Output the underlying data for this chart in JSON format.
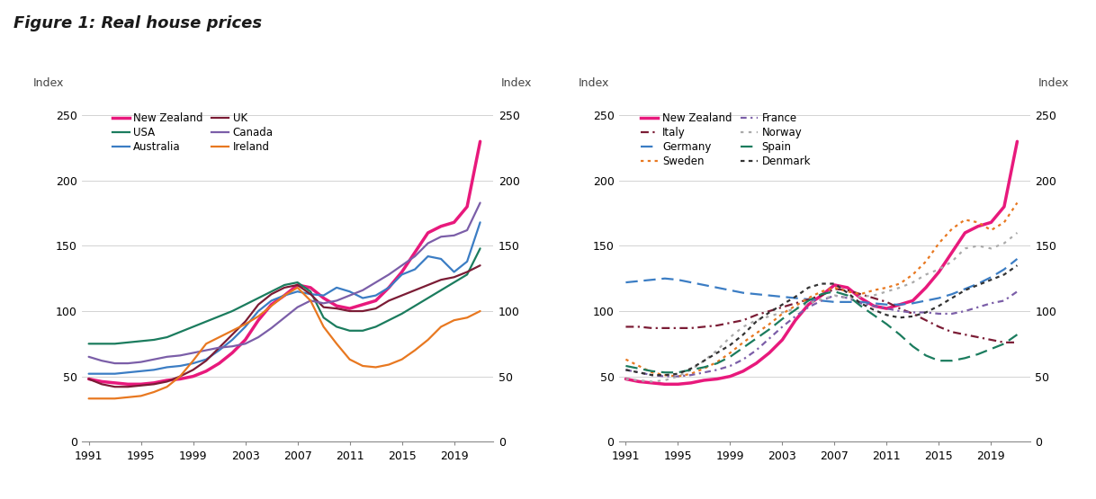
{
  "title": "Figure 1: Real house prices",
  "years": [
    1991,
    1992,
    1993,
    1994,
    1995,
    1996,
    1997,
    1998,
    1999,
    2000,
    2001,
    2002,
    2003,
    2004,
    2005,
    2006,
    2007,
    2008,
    2009,
    2010,
    2011,
    2012,
    2013,
    2014,
    2015,
    2016,
    2017,
    2018,
    2019,
    2020,
    2021
  ],
  "left_chart": {
    "New Zealand": [
      48,
      46,
      45,
      44,
      44,
      45,
      47,
      48,
      50,
      54,
      60,
      68,
      78,
      93,
      105,
      112,
      120,
      118,
      110,
      104,
      102,
      105,
      108,
      118,
      130,
      145,
      160,
      165,
      168,
      180,
      230
    ],
    "USA": [
      75,
      75,
      75,
      76,
      77,
      78,
      80,
      84,
      88,
      92,
      96,
      100,
      105,
      110,
      115,
      120,
      122,
      115,
      95,
      88,
      85,
      85,
      88,
      93,
      98,
      104,
      110,
      116,
      122,
      128,
      148
    ],
    "Australia": [
      52,
      52,
      52,
      53,
      54,
      55,
      57,
      58,
      60,
      63,
      70,
      78,
      88,
      100,
      108,
      112,
      115,
      113,
      112,
      118,
      115,
      110,
      112,
      118,
      128,
      132,
      142,
      140,
      130,
      138,
      168
    ],
    "UK": [
      48,
      44,
      42,
      42,
      43,
      44,
      46,
      50,
      55,
      62,
      72,
      82,
      92,
      105,
      113,
      118,
      120,
      113,
      103,
      102,
      100,
      100,
      102,
      108,
      112,
      116,
      120,
      124,
      126,
      130,
      135
    ],
    "Canada": [
      65,
      62,
      60,
      60,
      61,
      63,
      65,
      66,
      68,
      70,
      72,
      73,
      75,
      80,
      87,
      95,
      103,
      108,
      106,
      108,
      112,
      116,
      122,
      128,
      135,
      142,
      152,
      157,
      158,
      162,
      183
    ],
    "Ireland": [
      33,
      33,
      33,
      34,
      35,
      38,
      42,
      50,
      62,
      75,
      80,
      85,
      90,
      96,
      104,
      112,
      118,
      108,
      88,
      75,
      63,
      58,
      57,
      59,
      63,
      70,
      78,
      88,
      93,
      95,
      100
    ]
  },
  "right_chart": {
    "New Zealand": [
      48,
      46,
      45,
      44,
      44,
      45,
      47,
      48,
      50,
      54,
      60,
      68,
      78,
      93,
      105,
      112,
      120,
      118,
      110,
      104,
      102,
      105,
      108,
      118,
      130,
      145,
      160,
      165,
      168,
      180,
      230
    ],
    "Germany": [
      122,
      123,
      124,
      125,
      124,
      122,
      120,
      118,
      116,
      114,
      113,
      112,
      111,
      110,
      109,
      108,
      107,
      107,
      107,
      106,
      105,
      105,
      106,
      108,
      110,
      113,
      117,
      121,
      126,
      132,
      140
    ],
    "Italy": [
      88,
      88,
      87,
      87,
      87,
      87,
      88,
      89,
      91,
      93,
      97,
      100,
      103,
      106,
      109,
      112,
      117,
      116,
      113,
      110,
      107,
      102,
      98,
      93,
      88,
      84,
      82,
      80,
      78,
      76,
      76
    ],
    "Sweden": [
      63,
      58,
      53,
      51,
      50,
      52,
      56,
      61,
      68,
      76,
      83,
      90,
      98,
      104,
      110,
      115,
      118,
      115,
      113,
      116,
      118,
      121,
      128,
      138,
      152,
      163,
      170,
      168,
      162,
      168,
      183
    ],
    "France": [
      55,
      53,
      51,
      50,
      50,
      51,
      53,
      55,
      58,
      63,
      70,
      79,
      88,
      96,
      103,
      108,
      112,
      110,
      106,
      104,
      102,
      100,
      99,
      99,
      98,
      98,
      100,
      103,
      106,
      108,
      115
    ],
    "Norway": [
      48,
      47,
      46,
      47,
      50,
      55,
      62,
      70,
      80,
      88,
      93,
      96,
      99,
      102,
      106,
      109,
      112,
      110,
      111,
      112,
      115,
      118,
      122,
      128,
      132,
      138,
      148,
      150,
      148,
      152,
      160
    ],
    "Spain": [
      58,
      56,
      54,
      53,
      53,
      55,
      57,
      60,
      65,
      72,
      79,
      86,
      94,
      101,
      108,
      113,
      115,
      112,
      104,
      97,
      90,
      82,
      73,
      66,
      62,
      62,
      64,
      67,
      71,
      75,
      82
    ],
    "Denmark": [
      55,
      53,
      51,
      51,
      52,
      56,
      62,
      68,
      74,
      82,
      92,
      99,
      105,
      111,
      118,
      121,
      121,
      114,
      106,
      101,
      97,
      95,
      96,
      99,
      104,
      110,
      116,
      120,
      124,
      128,
      135
    ]
  },
  "left_colors": {
    "New Zealand": "#E8197C",
    "USA": "#1B7C5E",
    "Australia": "#3B7DC4",
    "UK": "#7B1C35",
    "Canada": "#7B5EA8",
    "Ireland": "#E87820"
  },
  "right_colors": {
    "New Zealand": "#E8197C",
    "Germany": "#3B7DC4",
    "Italy": "#7B1C35",
    "Sweden": "#E87820",
    "France": "#7B5EA8",
    "Norway": "#AAAAAA",
    "Spain": "#1B7C5E",
    "Denmark": "#333333"
  },
  "ylim": [
    0,
    260
  ],
  "yticks": [
    0,
    50,
    100,
    150,
    200,
    250
  ],
  "xticks": [
    1991,
    1995,
    1999,
    2003,
    2007,
    2011,
    2015,
    2019
  ],
  "background_color": "#FFFFFF",
  "grid_color": "#CCCCCC",
  "title_fontsize": 13,
  "axis_label_fontsize": 9,
  "tick_fontsize": 9,
  "legend_fontsize": 8.5
}
